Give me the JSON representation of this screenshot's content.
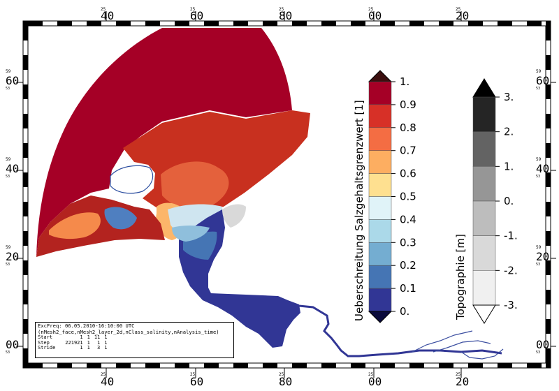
{
  "map": {
    "lon_top_minor": [
      "25",
      "25",
      "25",
      "25",
      "25"
    ],
    "lon_top_major": [
      "40",
      "60",
      "80",
      "00",
      "20"
    ],
    "lon_bottom_minor": [
      "25",
      "25",
      "25",
      "25",
      "25"
    ],
    "lon_bottom_major": [
      "40",
      "60",
      "80",
      "00",
      "20"
    ],
    "lat_minor": [
      "59",
      "59",
      "59"
    ],
    "lat_major": [
      "60",
      "40",
      "20",
      "00"
    ],
    "lat_minor_sub": [
      "53",
      "53",
      "53",
      "53"
    ],
    "coast_colors": {
      "sea": "#a50026",
      "river": "#313695",
      "land": "#ffffff",
      "mudflat": "#d9d9d9"
    }
  },
  "salinity_colorbar": {
    "title": "Ueberschreitung Salzgehaltsgrenzwert [1]",
    "labels": [
      "1.",
      "0.9",
      "0.8",
      "0.7",
      "0.6",
      "0.5",
      "0.4",
      "0.3",
      "0.2",
      "0.1",
      "0."
    ],
    "colors": [
      "#a50026",
      "#d73027",
      "#f46d43",
      "#fdae61",
      "#fee090",
      "#e0f3f8",
      "#abd9e9",
      "#74add1",
      "#4575b4",
      "#313695"
    ],
    "over_color": "#3b0f0f",
    "under_color": "#0a0a3c"
  },
  "topo_colorbar": {
    "title": "Topographie [m]",
    "labels": [
      "3.",
      "2.",
      "1.",
      "0.",
      "-1.",
      "-2.",
      "-3."
    ],
    "colors": [
      "#252525",
      "#636363",
      "#969696",
      "#bdbdbd",
      "#d9d9d9",
      "#f0f0f0"
    ],
    "over_color": "#000000",
    "under_color": "#ffffff"
  },
  "info": {
    "line1": "ExcFreq: 06.05.2010-16:10:00 UTC",
    "line2": "(nMesh2_face,nMesh2_layer_2d,nClass_salinity,nAnalysis_time)",
    "rows": [
      {
        "label": "Start",
        "v1": "1",
        "v2": "1",
        "v3": "11",
        "v4": "1"
      },
      {
        "label": "Step",
        "v1": "221921",
        "v2": "1",
        "v3": "1",
        "v4": "1"
      },
      {
        "label": "Stride",
        "v1": "1",
        "v2": "1",
        "v3": "3",
        "v4": "1"
      }
    ]
  }
}
